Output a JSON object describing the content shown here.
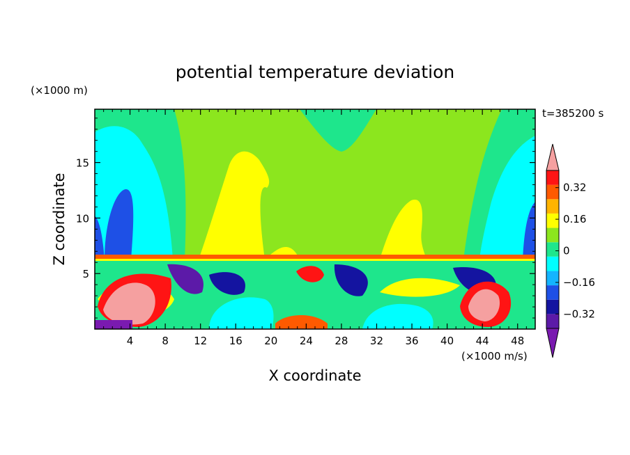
{
  "chart_data": {
    "type": "heatmap",
    "title": "potential temperature deviation",
    "xlabel": "X coordinate",
    "ylabel": "Z coordinate",
    "x_unit": "(×1000 m/s)",
    "y_unit": "(×1000 m)",
    "time_label": "t=385200 s",
    "xlim": [
      0,
      50
    ],
    "ylim": [
      0,
      19.8
    ],
    "x_ticks": [
      4,
      8,
      12,
      16,
      20,
      24,
      28,
      32,
      36,
      40,
      44,
      48
    ],
    "y_ticks": [
      5,
      10,
      15
    ],
    "colorbar": {
      "levels": [
        -0.4,
        -0.32,
        -0.24,
        -0.16,
        -0.08,
        0,
        0.08,
        0.16,
        0.24,
        0.32,
        0.4
      ],
      "labels": [
        "0.32",
        "0.16",
        "0",
        "−0.16",
        "−0.32"
      ],
      "label_values": [
        0.32,
        0.16,
        0,
        -0.16,
        -0.32
      ],
      "colors": [
        "#7a1ab0",
        "#5c1aa8",
        "#1414a0",
        "#1e50e6",
        "#14b4ff",
        "#00ffff",
        "#1ee68c",
        "#8ce61e",
        "#ffff00",
        "#ffb400",
        "#ff5a00",
        "#ff1414",
        "#f5a0a0"
      ],
      "extend": "both"
    },
    "field_description_levels": {
      "upper_layer": "mostly 0 to 0.08 with yellow (0.08-0.16) plumes near x=16-20 and x=32-36",
      "lower_layer": "strong oscillations between -0.4 and 0.4 below z~6.5"
    }
  }
}
